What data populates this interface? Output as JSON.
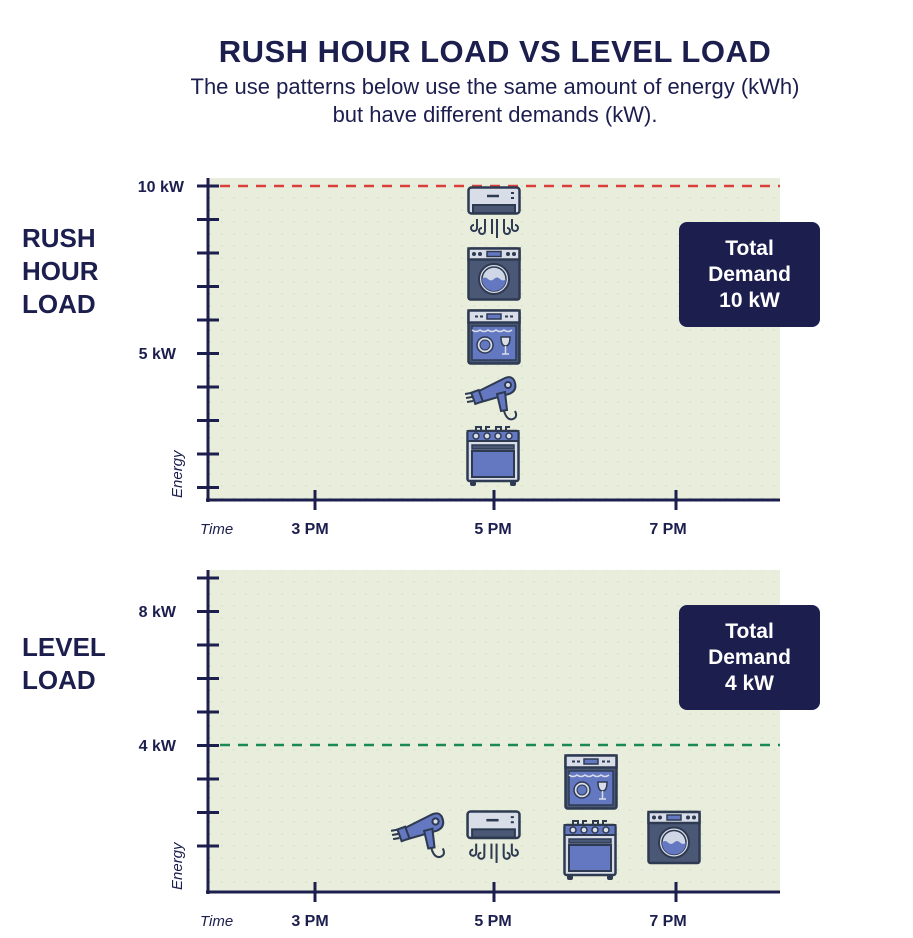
{
  "title": "RUSH HOUR LOAD VS LEVEL LOAD",
  "subtitle_lines": [
    "The use patterns below use the same amount of energy (kWh)",
    "but have different demands (kW)."
  ],
  "colors": {
    "navy": "#1c1e4e",
    "plot_bg": "#e9eedc",
    "rush_limit": "#d9403a",
    "level_limit": "#1a8a55",
    "appliance_blue": "#6378c0"
  },
  "chart_data": [
    {
      "type": "diagram",
      "section_label_lines": [
        "RUSH",
        "HOUR",
        "LOAD"
      ],
      "ylabel": "Energy",
      "xlabel": "Time",
      "y_ticks": [
        "10 kW",
        "5 kW"
      ],
      "x_ticks": [
        "3 PM",
        "5 PM",
        "7 PM"
      ],
      "limit_line_kw": 10,
      "total_demand_lines": [
        "Total",
        "Demand",
        "10 kW"
      ],
      "appliances": [
        {
          "name": "air-conditioner",
          "time": "5 PM"
        },
        {
          "name": "washing-machine",
          "time": "5 PM"
        },
        {
          "name": "dishwasher",
          "time": "5 PM"
        },
        {
          "name": "hair-dryer",
          "time": "5 PM"
        },
        {
          "name": "stove",
          "time": "5 PM"
        }
      ]
    },
    {
      "type": "diagram",
      "section_label_lines": [
        "LEVEL",
        "LOAD"
      ],
      "ylabel": "Energy",
      "xlabel": "Time",
      "y_ticks": [
        "8 kW",
        "4 kW"
      ],
      "x_ticks": [
        "3 PM",
        "5 PM",
        "7 PM"
      ],
      "limit_line_kw": 4,
      "total_demand_lines": [
        "Total",
        "Demand",
        "4 kW"
      ],
      "appliances": [
        {
          "name": "hair-dryer",
          "time": "4:30 PM"
        },
        {
          "name": "air-conditioner",
          "time": "5 PM"
        },
        {
          "name": "dishwasher",
          "time": "6 PM"
        },
        {
          "name": "stove",
          "time": "6 PM"
        },
        {
          "name": "washing-machine",
          "time": "7 PM"
        }
      ]
    }
  ]
}
